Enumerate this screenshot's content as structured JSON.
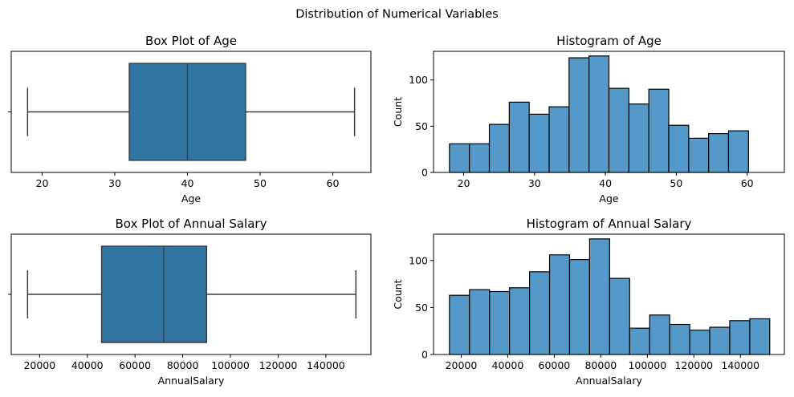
{
  "suptitle": "Distribution of Numerical Variables",
  "colors": {
    "box_fill": "#3274a1",
    "hist_fill": "#5499c7",
    "edge": "#000000",
    "whisker": "#3d3d3d"
  },
  "chart_data": [
    {
      "id": "box_age",
      "type": "box",
      "title": "Box Plot of Age",
      "xlabel": "Age",
      "xlim": [
        15.75,
        65.25
      ],
      "xticks": [
        20,
        30,
        40,
        50,
        60
      ],
      "box": {
        "whisker_low": 18,
        "q1": 32,
        "median": 40,
        "q3": 48,
        "whisker_high": 63
      }
    },
    {
      "id": "hist_age",
      "type": "histogram",
      "title": "Histogram of Age",
      "xlabel": "Age",
      "ylabel": "Count",
      "xlim": [
        15.75,
        65.25
      ],
      "ylim": [
        0,
        131
      ],
      "xticks": [
        20,
        30,
        40,
        50,
        60
      ],
      "yticks": [
        0,
        50,
        100
      ],
      "bin_start": 18,
      "bin_width": 2.8125,
      "counts": [
        31,
        31,
        52,
        76,
        63,
        71,
        124,
        126,
        91,
        74,
        90,
        51,
        37,
        42,
        45
      ]
    },
    {
      "id": "box_salary",
      "type": "box",
      "title": "Box Plot of Annual Salary",
      "xlabel": "AnnualSalary",
      "xlim": [
        8111,
        158889
      ],
      "xticks": [
        20000,
        40000,
        60000,
        80000,
        100000,
        120000,
        140000
      ],
      "box": {
        "whisker_low": 14964,
        "q1": 46000,
        "median": 72000,
        "q3": 90000,
        "whisker_high": 152600
      }
    },
    {
      "id": "hist_salary",
      "type": "histogram",
      "title": "Histogram of Annual Salary",
      "xlabel": "AnnualSalary",
      "ylabel": "Count",
      "xlim": [
        8111,
        158889
      ],
      "ylim": [
        0,
        128
      ],
      "xticks": [
        20000,
        40000,
        60000,
        80000,
        100000,
        120000,
        140000
      ],
      "yticks": [
        0,
        50,
        100
      ],
      "bin_start": 14964,
      "bin_width": 8603,
      "counts": [
        63,
        69,
        67,
        71,
        88,
        106,
        101,
        123,
        81,
        28,
        42,
        32,
        26,
        29,
        36,
        38
      ]
    }
  ]
}
